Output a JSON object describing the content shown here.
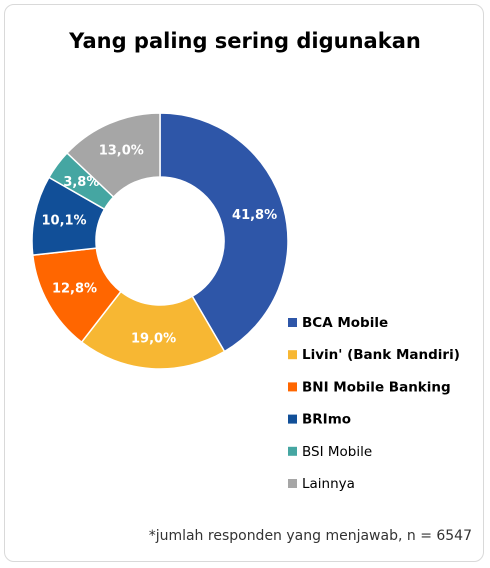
{
  "chart_data": {
    "type": "donut",
    "title": "Yang paling sering digunakan",
    "categories": [
      "BCA Mobile",
      "Livin' (Bank Mandiri)",
      "BNI Mobile Banking",
      "BRImo",
      "BSI Mobile",
      "Lainnya"
    ],
    "values": [
      41.8,
      19.0,
      12.8,
      10.1,
      3.8,
      13.0
    ],
    "value_labels": [
      "41,8%",
      "19,0%",
      "12,8%",
      "10,1%",
      "3,8%",
      "13,0%"
    ],
    "colors": [
      "#2e56a8",
      "#f7b733",
      "#ff6600",
      "#114f98",
      "#45a6a2",
      "#a6a6a6"
    ],
    "note": "*jumlah responden yang menjawab, n = 6547"
  }
}
